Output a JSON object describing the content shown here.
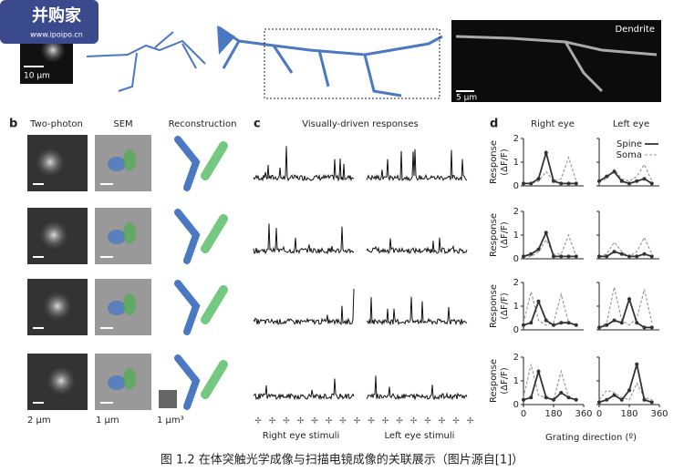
{
  "logo": {
    "name": "并购家",
    "url": "www.ipoipo.cn"
  },
  "top": {
    "scale_left": "10 µm",
    "dendrite_label": "Dendrite",
    "scale_right": "5 µm"
  },
  "panel_b": {
    "letter": "b",
    "columns": [
      "Two-photon",
      "SEM",
      "Reconstruction"
    ],
    "scales": [
      "2 µm",
      "1 µm",
      "1 µm³"
    ]
  },
  "panel_c": {
    "letter": "c",
    "title": "Visually-driven responses",
    "stimuli": [
      "Right eye stimuli",
      "Left eye stimuli"
    ]
  },
  "panel_d": {
    "letter": "d",
    "columns": [
      "Right eye",
      "Left eye"
    ],
    "legend": [
      "Spine",
      "Soma"
    ],
    "ylabel": [
      "Response",
      "(ΔF/F)"
    ],
    "xlabel": "Grating direction (º)",
    "ylim": [
      0,
      2
    ],
    "yticks": [
      0,
      1,
      2
    ],
    "xlim": [
      0,
      360
    ],
    "xticks": [
      0,
      180,
      360
    ],
    "directions": [
      0,
      45,
      90,
      135,
      180,
      225,
      270,
      315
    ],
    "panels": [
      {
        "spine": [
          0.1,
          0.1,
          0.3,
          1.4,
          0.2,
          0.1,
          0.1,
          0.1
        ],
        "soma": [
          0.1,
          0.1,
          0.2,
          0.6,
          0.2,
          0.3,
          1.2,
          0.2
        ]
      },
      {
        "spine": [
          0.2,
          0.4,
          0.6,
          0.2,
          0.1,
          0.2,
          0.3,
          0.1
        ],
        "soma": [
          0.2,
          0.3,
          0.7,
          0.3,
          0.2,
          0.4,
          0.9,
          0.2
        ]
      },
      {
        "spine": [
          0.1,
          0.2,
          0.4,
          1.1,
          0.1,
          0.1,
          0.1,
          0.1
        ],
        "soma": [
          0.1,
          0.1,
          0.3,
          0.8,
          0.2,
          0.2,
          1.0,
          0.1
        ]
      },
      {
        "spine": [
          0.1,
          0.1,
          0.3,
          0.2,
          0.1,
          0.1,
          0.2,
          0.1
        ],
        "soma": [
          0.1,
          0.2,
          0.7,
          0.3,
          0.1,
          0.3,
          0.9,
          0.2
        ]
      },
      {
        "spine": [
          0.2,
          0.3,
          1.2,
          0.4,
          0.2,
          0.3,
          0.3,
          0.2
        ],
        "soma": [
          0.3,
          1.6,
          0.4,
          0.2,
          0.3,
          1.5,
          0.3,
          0.2
        ]
      },
      {
        "spine": [
          0.1,
          0.2,
          0.4,
          0.3,
          1.3,
          0.3,
          0.1,
          0.1
        ],
        "soma": [
          0.1,
          0.3,
          1.8,
          0.4,
          0.2,
          0.5,
          1.7,
          0.3
        ]
      },
      {
        "spine": [
          0.2,
          0.3,
          1.4,
          0.3,
          0.2,
          0.5,
          0.3,
          0.2
        ],
        "soma": [
          0.3,
          1.7,
          0.4,
          0.3,
          0.2,
          1.4,
          0.3,
          0.2
        ]
      },
      {
        "spine": [
          0.1,
          0.2,
          0.4,
          0.2,
          0.6,
          1.7,
          0.2,
          0.1
        ],
        "soma": [
          0.2,
          0.6,
          0.5,
          0.3,
          0.2,
          0.9,
          0.3,
          0.2
        ]
      }
    ]
  },
  "caption": "图 1.2 在体突触光学成像与扫描电镜成像的关联展示（图片源自[1]）"
}
